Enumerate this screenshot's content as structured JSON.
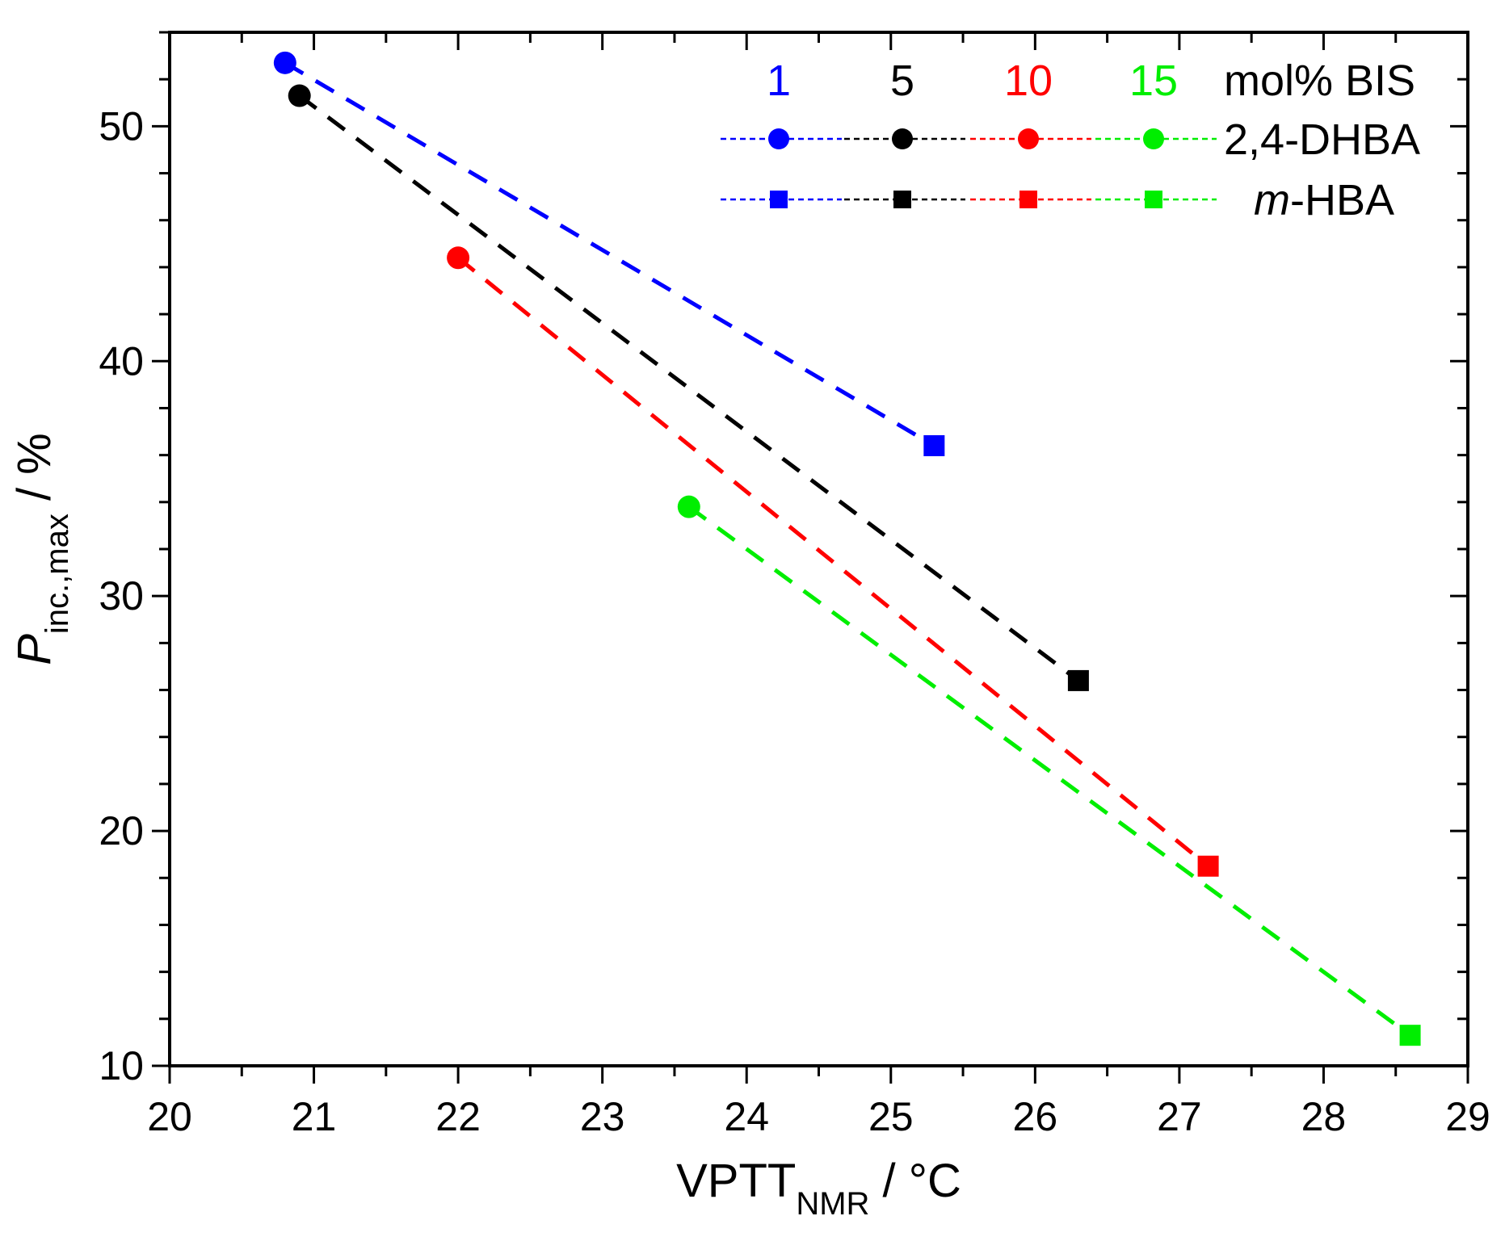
{
  "chart_data": {
    "type": "scatter",
    "title": "",
    "xlabel": "VPTT",
    "xlabel_sub": "NMR",
    "xlabel_unit": " / °C",
    "ylabel": "P",
    "ylabel_sub": "inc.,max",
    "ylabel_unit": " / %",
    "xlim": [
      20,
      29
    ],
    "ylim": [
      10,
      54
    ],
    "x_ticks": [
      "20",
      "21",
      "22",
      "23",
      "24",
      "25",
      "26",
      "27",
      "28",
      "29"
    ],
    "y_ticks": [
      "10",
      "20",
      "30",
      "40",
      "50"
    ],
    "series": [
      {
        "name": "1",
        "color": "#0000ff",
        "points": [
          {
            "x": 20.8,
            "y": 52.7,
            "marker": "circle"
          },
          {
            "x": 25.3,
            "y": 36.4,
            "marker": "square"
          }
        ]
      },
      {
        "name": "5",
        "color": "#000000",
        "points": [
          {
            "x": 20.9,
            "y": 51.3,
            "marker": "circle"
          },
          {
            "x": 26.3,
            "y": 26.4,
            "marker": "square"
          }
        ]
      },
      {
        "name": "10",
        "color": "#ff0000",
        "points": [
          {
            "x": 22.0,
            "y": 44.4,
            "marker": "circle"
          },
          {
            "x": 27.2,
            "y": 18.5,
            "marker": "square"
          }
        ]
      },
      {
        "name": "15",
        "color": "#00ee00",
        "points": [
          {
            "x": 23.6,
            "y": 33.8,
            "marker": "circle"
          },
          {
            "x": 28.6,
            "y": 11.3,
            "marker": "square"
          }
        ]
      }
    ],
    "legend": {
      "placement": "top-right",
      "header_suffix": "mol% BIS",
      "row_circle_label": "2,4-DHBA",
      "row_square_label_italic": "m",
      "row_square_label_rest": "-HBA"
    }
  }
}
